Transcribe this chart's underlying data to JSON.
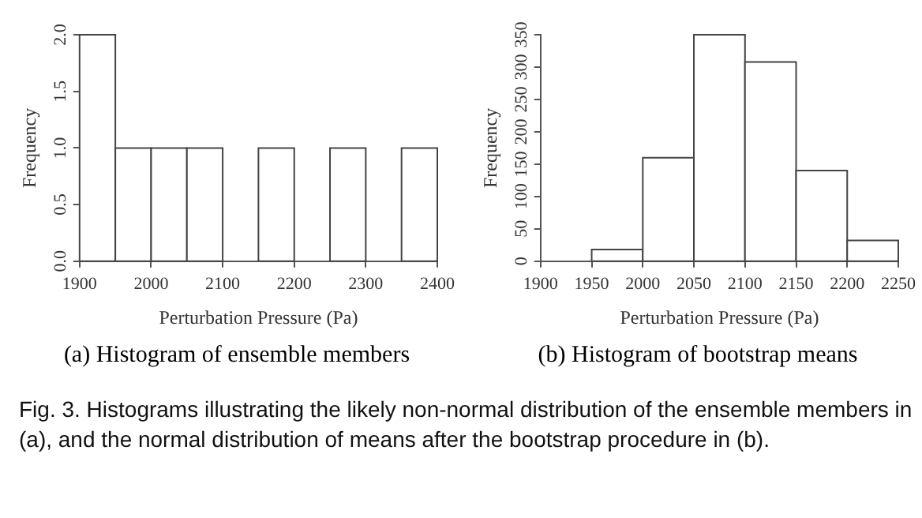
{
  "chart_data": [
    {
      "type": "histogram",
      "title": "(a)  Histogram of ensemble members",
      "xlabel": "Perturbation Pressure (Pa)",
      "ylabel": "Frequency",
      "bins": [
        1900,
        1950,
        2000,
        2050,
        2100,
        2150,
        2200,
        2250,
        2300,
        2350,
        2400
      ],
      "values": [
        2,
        1,
        1,
        1,
        0,
        1,
        0,
        1,
        0,
        1
      ],
      "color": "#ffffff",
      "xlim": [
        1900,
        2400
      ],
      "xticks": [
        1900,
        2000,
        2100,
        2200,
        2300,
        2400
      ],
      "ylim": [
        0,
        2
      ],
      "yticks": [
        {
          "value": 0,
          "label": "0.0"
        },
        {
          "value": 0.5,
          "label": "0.5"
        },
        {
          "value": 1,
          "label": "1.0"
        },
        {
          "value": 1.5,
          "label": "1.5"
        },
        {
          "value": 2,
          "label": "2.0"
        }
      ],
      "grid": false,
      "legend": false
    },
    {
      "type": "histogram",
      "title": "(b)  Histogram of bootstrap means",
      "xlabel": "Perturbation Pressure (Pa)",
      "ylabel": "Frequency",
      "bins": [
        1900,
        1950,
        2000,
        2050,
        2100,
        2150,
        2200,
        2250
      ],
      "values": [
        0,
        18,
        160,
        350,
        308,
        140,
        32
      ],
      "color": "#ffffff",
      "xlim": [
        1900,
        2250
      ],
      "xticks": [
        1900,
        1950,
        2000,
        2050,
        2100,
        2150,
        2200,
        2250
      ],
      "ylim": [
        0,
        350
      ],
      "yticks": [
        0,
        50,
        100,
        150,
        200,
        250,
        300,
        350
      ],
      "grid": false,
      "legend": false,
      "annotations": [
        "Fig. 3.  Histograms illustrating the likely non-normal distribution of the ensemble members in (a), and the normal distribution of means after the bootstrap procedure in (b)."
      ]
    }
  ]
}
